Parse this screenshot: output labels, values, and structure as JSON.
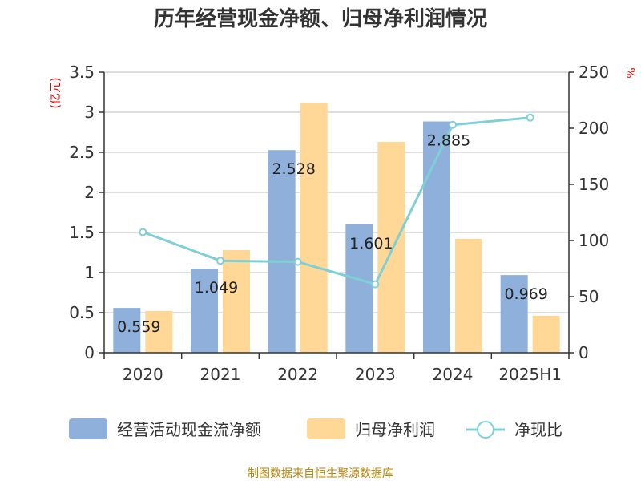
{
  "title": "历年经营现金净额、归母净利润情况",
  "left_unit": "(亿元)",
  "right_unit": "%",
  "source": "制图数据来自恒生聚源数据库",
  "colors": {
    "cash_flow": "#8eb0da",
    "net_profit": "#ffd797",
    "ratio": "#7fd0d6"
  },
  "chart_data": {
    "type": "bar",
    "categories": [
      "2020",
      "2021",
      "2022",
      "2023",
      "2024",
      "2025H1"
    ],
    "left_axis": {
      "ylim": [
        0,
        3.5
      ],
      "ticks": [
        "0",
        "0.5",
        "1",
        "1.5",
        "2",
        "2.5",
        "3",
        "3.5"
      ]
    },
    "right_axis": {
      "ylim": [
        0,
        250
      ],
      "ticks": [
        "0",
        "50",
        "100",
        "150",
        "200",
        "250"
      ]
    },
    "grid": true,
    "legend_position": "bottom",
    "series": [
      {
        "name": "经营活动现金流净额",
        "type": "bar",
        "axis": "left",
        "values": [
          0.559,
          1.049,
          2.528,
          1.601,
          2.885,
          0.969
        ],
        "labels": [
          "0.559",
          "1.049",
          "2.528",
          "1.601",
          "2.885",
          "0.969"
        ]
      },
      {
        "name": "归母净利润",
        "type": "bar",
        "axis": "left",
        "values": [
          0.52,
          1.28,
          3.12,
          2.63,
          1.42,
          0.46
        ]
      },
      {
        "name": "净现比",
        "type": "line",
        "axis": "right",
        "values": [
          107.5,
          82,
          81,
          61,
          203,
          209.5
        ]
      }
    ]
  }
}
